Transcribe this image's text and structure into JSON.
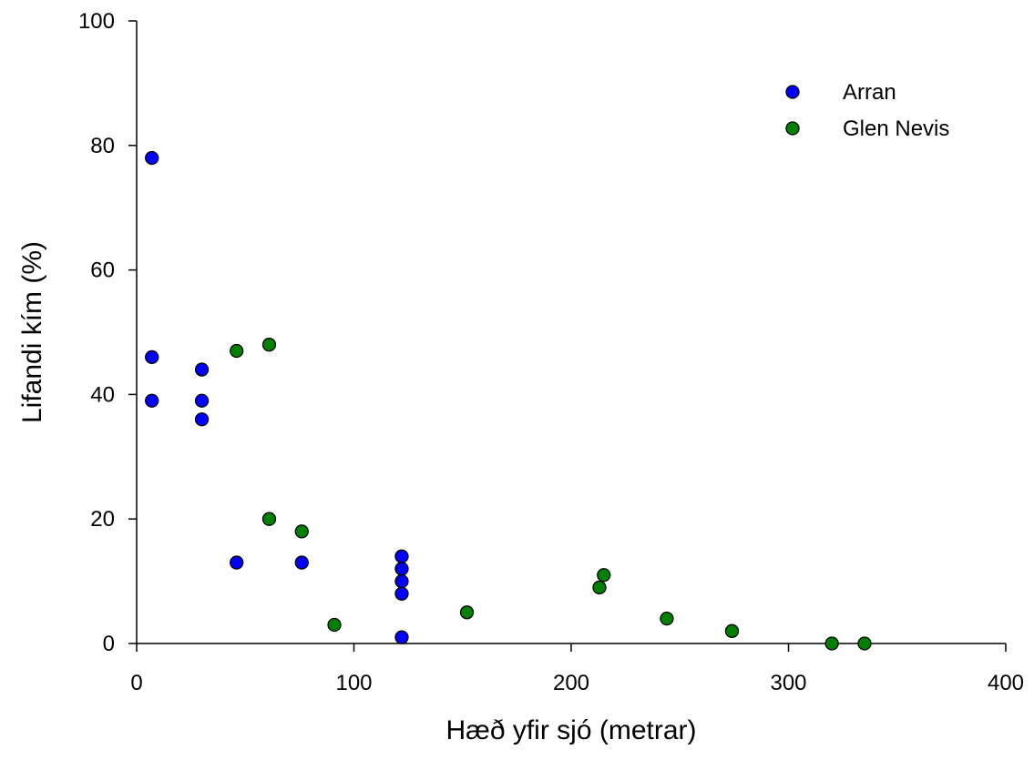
{
  "chart_data": {
    "type": "scatter",
    "xlabel": "Hæð yfir sjó (metrar)",
    "ylabel": "Lifandi kím (%)",
    "xlim": [
      0,
      400
    ],
    "ylim": [
      0,
      100
    ],
    "xticks": [
      0,
      100,
      200,
      300,
      400
    ],
    "yticks": [
      0,
      20,
      40,
      60,
      80,
      100
    ],
    "grid": false,
    "legend": "top-right",
    "series": [
      {
        "name": "Arran",
        "color": "#0000ff",
        "points": [
          {
            "x": 7,
            "y": 78
          },
          {
            "x": 7,
            "y": 46
          },
          {
            "x": 7,
            "y": 39
          },
          {
            "x": 30,
            "y": 44
          },
          {
            "x": 30,
            "y": 39
          },
          {
            "x": 30,
            "y": 36
          },
          {
            "x": 46,
            "y": 13
          },
          {
            "x": 76,
            "y": 13
          },
          {
            "x": 122,
            "y": 14
          },
          {
            "x": 122,
            "y": 12
          },
          {
            "x": 122,
            "y": 10
          },
          {
            "x": 122,
            "y": 8
          },
          {
            "x": 122,
            "y": 1
          }
        ]
      },
      {
        "name": "Glen Nevis",
        "color": "#008000",
        "points": [
          {
            "x": 46,
            "y": 47
          },
          {
            "x": 61,
            "y": 48
          },
          {
            "x": 61,
            "y": 20
          },
          {
            "x": 76,
            "y": 18
          },
          {
            "x": 91,
            "y": 3
          },
          {
            "x": 152,
            "y": 5
          },
          {
            "x": 213,
            "y": 9
          },
          {
            "x": 215,
            "y": 11
          },
          {
            "x": 244,
            "y": 4
          },
          {
            "x": 274,
            "y": 2
          },
          {
            "x": 320,
            "y": 0
          },
          {
            "x": 335,
            "y": 0
          }
        ]
      }
    ]
  }
}
